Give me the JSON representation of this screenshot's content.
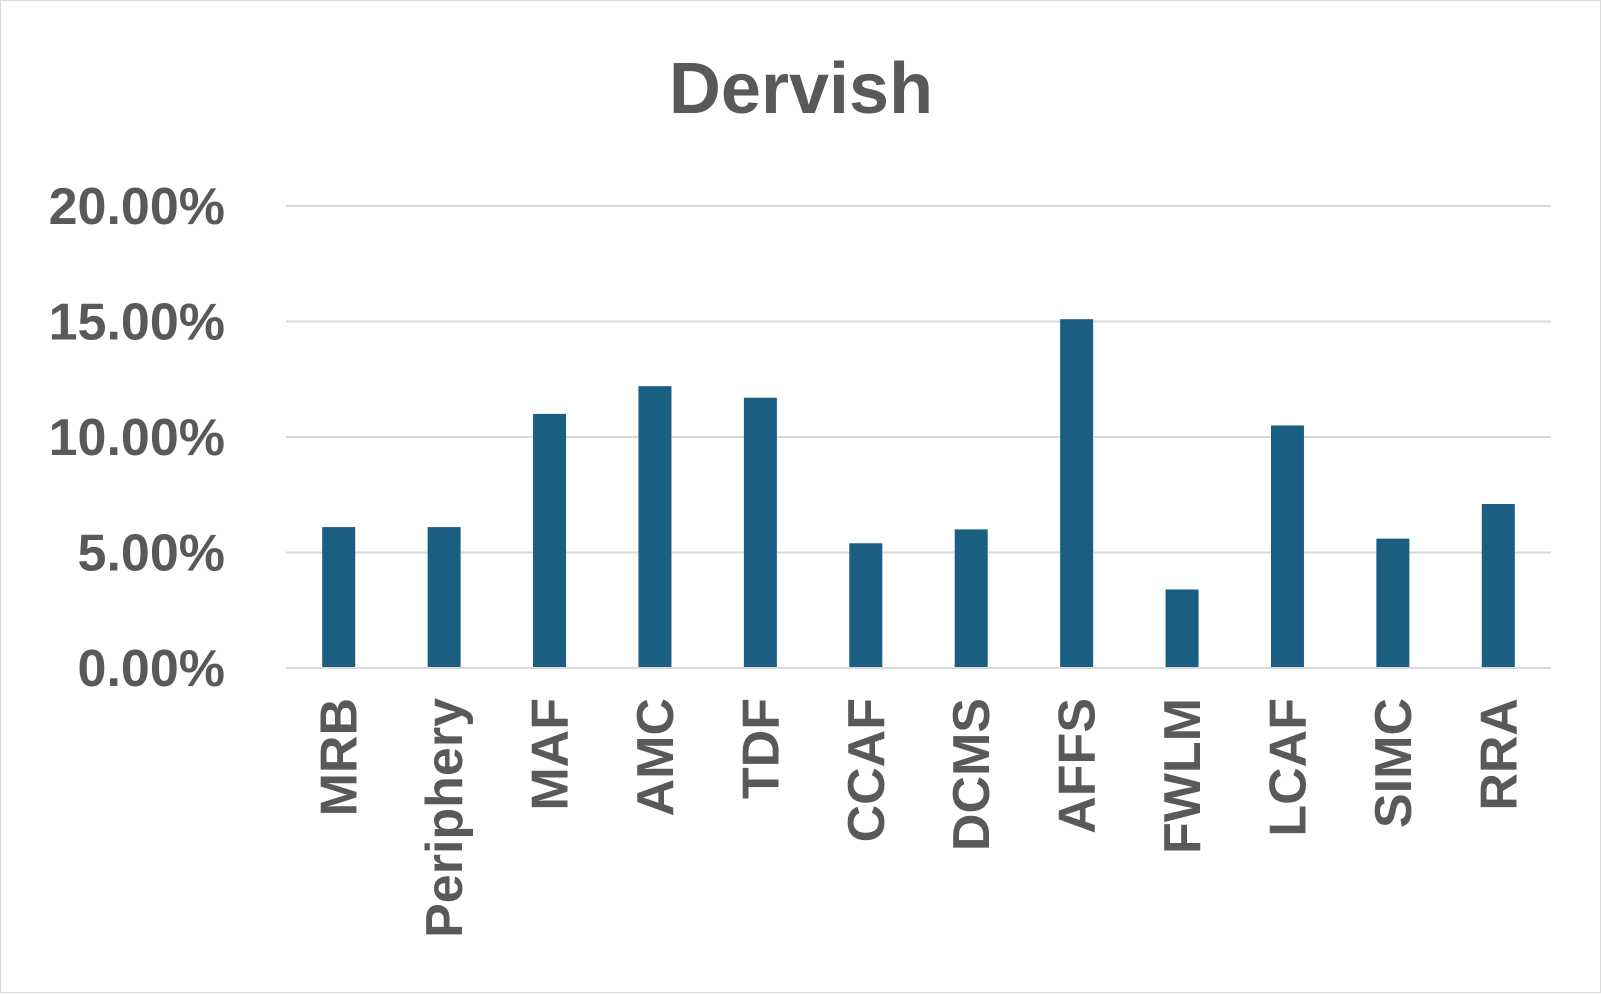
{
  "chart_data": {
    "type": "bar",
    "title": "Dervish",
    "xlabel": "",
    "ylabel": "",
    "categories": [
      "MRB",
      "Periphery",
      "MAF",
      "AMC",
      "TDF",
      "CCAF",
      "DCMS",
      "AFFS",
      "FWLM",
      "LCAF",
      "SIMC",
      "RRA"
    ],
    "values": [
      6.1,
      6.1,
      11.0,
      12.2,
      11.7,
      5.4,
      6.0,
      15.1,
      3.4,
      10.5,
      5.6,
      7.1
    ],
    "value_format": "percent",
    "ylim": [
      0,
      20
    ],
    "yticks": [
      0,
      5,
      10,
      15,
      20
    ],
    "ytick_labels": [
      "0.00%",
      "5.00%",
      "10.00%",
      "15.00%",
      "20.00%"
    ],
    "grid": true,
    "legend": "none",
    "bar_color": "#1a5e82"
  }
}
